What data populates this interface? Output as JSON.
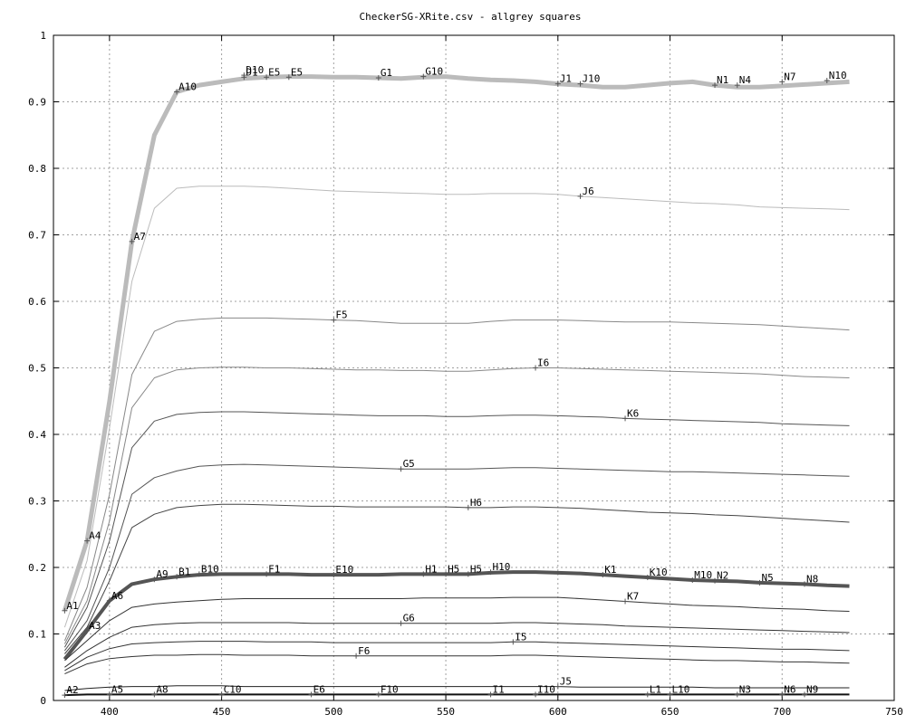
{
  "chart_data": {
    "type": "line",
    "title": "CheckerSG-XRite.csv - allgrey squares",
    "xlim": [
      375,
      750
    ],
    "ylim": [
      0,
      1
    ],
    "xticks": [
      400,
      450,
      500,
      550,
      600,
      650,
      700,
      750
    ],
    "yticks": [
      0,
      0.1,
      0.2,
      0.3,
      0.4,
      0.5,
      0.6,
      0.7,
      0.8,
      0.9,
      1
    ],
    "grid": true,
    "x": [
      380,
      390,
      400,
      410,
      420,
      430,
      440,
      450,
      460,
      470,
      480,
      490,
      500,
      510,
      520,
      530,
      540,
      550,
      560,
      570,
      580,
      590,
      600,
      610,
      620,
      630,
      640,
      650,
      660,
      670,
      680,
      690,
      700,
      710,
      720,
      730
    ],
    "series": [
      {
        "color": "#bbbbbb",
        "width": 5,
        "values": [
          0.135,
          0.24,
          0.45,
          0.69,
          0.85,
          0.915,
          0.925,
          0.93,
          0.935,
          0.937,
          0.938,
          0.938,
          0.937,
          0.937,
          0.936,
          0.935,
          0.937,
          0.938,
          0.935,
          0.933,
          0.932,
          0.93,
          0.927,
          0.925,
          0.922,
          0.922,
          0.925,
          0.928,
          0.93,
          0.925,
          0.922,
          0.922,
          0.924,
          0.926,
          0.928,
          0.93
        ]
      },
      {
        "color": "#bbbbbb",
        "width": 1,
        "values": [
          0.11,
          0.21,
          0.41,
          0.63,
          0.74,
          0.77,
          0.773,
          0.773,
          0.773,
          0.772,
          0.77,
          0.768,
          0.766,
          0.765,
          0.764,
          0.763,
          0.762,
          0.761,
          0.761,
          0.762,
          0.762,
          0.762,
          0.761,
          0.758,
          0.756,
          0.754,
          0.752,
          0.75,
          0.748,
          0.747,
          0.745,
          0.742,
          0.741,
          0.74,
          0.739,
          0.738
        ]
      },
      {
        "color": "#888888",
        "width": 1,
        "values": [
          0.09,
          0.17,
          0.31,
          0.49,
          0.555,
          0.57,
          0.573,
          0.575,
          0.575,
          0.575,
          0.574,
          0.573,
          0.572,
          0.571,
          0.569,
          0.567,
          0.567,
          0.567,
          0.567,
          0.57,
          0.572,
          0.572,
          0.572,
          0.571,
          0.57,
          0.569,
          0.569,
          0.569,
          0.568,
          0.567,
          0.566,
          0.565,
          0.563,
          0.561,
          0.559,
          0.557
        ]
      },
      {
        "color": "#888888",
        "width": 1,
        "values": [
          0.085,
          0.15,
          0.27,
          0.44,
          0.485,
          0.497,
          0.5,
          0.501,
          0.501,
          0.5,
          0.5,
          0.499,
          0.498,
          0.497,
          0.497,
          0.496,
          0.496,
          0.495,
          0.495,
          0.497,
          0.499,
          0.5,
          0.5,
          0.499,
          0.498,
          0.497,
          0.496,
          0.495,
          0.494,
          0.493,
          0.492,
          0.491,
          0.489,
          0.487,
          0.486,
          0.485
        ]
      },
      {
        "color": "#555555",
        "width": 1,
        "values": [
          0.08,
          0.14,
          0.24,
          0.38,
          0.42,
          0.43,
          0.433,
          0.434,
          0.434,
          0.433,
          0.432,
          0.431,
          0.43,
          0.429,
          0.428,
          0.428,
          0.428,
          0.427,
          0.427,
          0.428,
          0.429,
          0.429,
          0.428,
          0.427,
          0.426,
          0.424,
          0.423,
          0.422,
          0.421,
          0.42,
          0.419,
          0.418,
          0.416,
          0.415,
          0.414,
          0.413
        ]
      },
      {
        "color": "#555555",
        "width": 1,
        "values": [
          0.075,
          0.12,
          0.2,
          0.31,
          0.335,
          0.345,
          0.352,
          0.354,
          0.355,
          0.354,
          0.353,
          0.352,
          0.351,
          0.35,
          0.349,
          0.348,
          0.348,
          0.348,
          0.348,
          0.349,
          0.35,
          0.35,
          0.349,
          0.348,
          0.347,
          0.346,
          0.345,
          0.344,
          0.344,
          0.343,
          0.342,
          0.341,
          0.34,
          0.339,
          0.338,
          0.337
        ]
      },
      {
        "color": "#444444",
        "width": 1,
        "values": [
          0.07,
          0.11,
          0.18,
          0.26,
          0.28,
          0.29,
          0.293,
          0.295,
          0.295,
          0.294,
          0.293,
          0.292,
          0.292,
          0.291,
          0.291,
          0.291,
          0.291,
          0.291,
          0.29,
          0.29,
          0.291,
          0.291,
          0.29,
          0.289,
          0.287,
          0.285,
          0.283,
          0.282,
          0.281,
          0.279,
          0.278,
          0.276,
          0.274,
          0.272,
          0.27,
          0.268
        ]
      },
      {
        "color": "#555555",
        "width": 4,
        "values": [
          0.062,
          0.105,
          0.15,
          0.175,
          0.182,
          0.186,
          0.189,
          0.19,
          0.19,
          0.19,
          0.19,
          0.189,
          0.189,
          0.189,
          0.189,
          0.19,
          0.19,
          0.19,
          0.19,
          0.192,
          0.193,
          0.193,
          0.192,
          0.191,
          0.189,
          0.187,
          0.185,
          0.183,
          0.181,
          0.18,
          0.179,
          0.177,
          0.176,
          0.175,
          0.173,
          0.172
        ]
      },
      {
        "color": "#333333",
        "width": 1,
        "values": [
          0.06,
          0.09,
          0.12,
          0.14,
          0.145,
          0.148,
          0.15,
          0.152,
          0.153,
          0.153,
          0.153,
          0.153,
          0.153,
          0.153,
          0.153,
          0.153,
          0.154,
          0.154,
          0.154,
          0.154,
          0.155,
          0.155,
          0.155,
          0.153,
          0.151,
          0.149,
          0.147,
          0.145,
          0.143,
          0.142,
          0.141,
          0.139,
          0.138,
          0.137,
          0.135,
          0.134
        ]
      },
      {
        "color": "#333333",
        "width": 1,
        "values": [
          0.05,
          0.075,
          0.095,
          0.11,
          0.114,
          0.116,
          0.117,
          0.117,
          0.117,
          0.117,
          0.117,
          0.116,
          0.116,
          0.116,
          0.116,
          0.116,
          0.116,
          0.116,
          0.116,
          0.116,
          0.117,
          0.117,
          0.116,
          0.115,
          0.114,
          0.112,
          0.111,
          0.11,
          0.109,
          0.108,
          0.107,
          0.106,
          0.105,
          0.104,
          0.103,
          0.102
        ]
      },
      {
        "color": "#333333",
        "width": 1,
        "values": [
          0.045,
          0.065,
          0.078,
          0.085,
          0.087,
          0.088,
          0.089,
          0.089,
          0.089,
          0.088,
          0.088,
          0.088,
          0.087,
          0.087,
          0.087,
          0.087,
          0.087,
          0.087,
          0.087,
          0.087,
          0.088,
          0.088,
          0.087,
          0.086,
          0.085,
          0.084,
          0.083,
          0.082,
          0.081,
          0.08,
          0.079,
          0.078,
          0.077,
          0.077,
          0.076,
          0.075
        ]
      },
      {
        "color": "#333333",
        "width": 1,
        "values": [
          0.04,
          0.055,
          0.063,
          0.066,
          0.068,
          0.068,
          0.069,
          0.069,
          0.068,
          0.068,
          0.068,
          0.067,
          0.067,
          0.067,
          0.067,
          0.067,
          0.067,
          0.067,
          0.067,
          0.067,
          0.068,
          0.068,
          0.067,
          0.066,
          0.065,
          0.064,
          0.063,
          0.062,
          0.061,
          0.06,
          0.06,
          0.059,
          0.058,
          0.058,
          0.057,
          0.056
        ]
      },
      {
        "color": "#222222",
        "width": 1,
        "values": [
          0.015,
          0.018,
          0.02,
          0.021,
          0.021,
          0.022,
          0.022,
          0.022,
          0.021,
          0.021,
          0.021,
          0.021,
          0.021,
          0.021,
          0.021,
          0.021,
          0.021,
          0.021,
          0.021,
          0.021,
          0.021,
          0.021,
          0.021,
          0.02,
          0.02,
          0.02,
          0.02,
          0.02,
          0.02,
          0.019,
          0.019,
          0.019,
          0.019,
          0.019,
          0.019,
          0.019
        ]
      },
      {
        "color": "#111111",
        "width": 2,
        "values": [
          0.008,
          0.009,
          0.009,
          0.009,
          0.009,
          0.009,
          0.009,
          0.009,
          0.009,
          0.009,
          0.009,
          0.009,
          0.009,
          0.009,
          0.009,
          0.009,
          0.009,
          0.009,
          0.009,
          0.009,
          0.009,
          0.009,
          0.009,
          0.009,
          0.009,
          0.009,
          0.009,
          0.009,
          0.009,
          0.009,
          0.009,
          0.009,
          0.009,
          0.009,
          0.009,
          0.009
        ]
      }
    ],
    "annotations": [
      {
        "text": "A1",
        "x": 380,
        "y": 0.135
      },
      {
        "text": "A4",
        "x": 390,
        "y": 0.24
      },
      {
        "text": "A7",
        "x": 410,
        "y": 0.69
      },
      {
        "text": "A10",
        "x": 430,
        "y": 0.915
      },
      {
        "text": "D10",
        "x": 460,
        "y": 0.94
      },
      {
        "text": "D1",
        "x": 460,
        "y": 0.937
      },
      {
        "text": "E5",
        "x": 470,
        "y": 0.937
      },
      {
        "text": "E5",
        "x": 480,
        "y": 0.937
      },
      {
        "text": "G1",
        "x": 520,
        "y": 0.936
      },
      {
        "text": "G10",
        "x": 540,
        "y": 0.938
      },
      {
        "text": "J1",
        "x": 600,
        "y": 0.927
      },
      {
        "text": "J10",
        "x": 610,
        "y": 0.927
      },
      {
        "text": "N1",
        "x": 670,
        "y": 0.925
      },
      {
        "text": "N4",
        "x": 680,
        "y": 0.925
      },
      {
        "text": "N7",
        "x": 700,
        "y": 0.93
      },
      {
        "text": "N10",
        "x": 720,
        "y": 0.932
      },
      {
        "text": "J6",
        "x": 610,
        "y": 0.758
      },
      {
        "text": "F5",
        "x": 500,
        "y": 0.572
      },
      {
        "text": "I6",
        "x": 590,
        "y": 0.5
      },
      {
        "text": "K6",
        "x": 630,
        "y": 0.424
      },
      {
        "text": "G5",
        "x": 530,
        "y": 0.348
      },
      {
        "text": "H6",
        "x": 560,
        "y": 0.29
      },
      {
        "text": "A9",
        "x": 420,
        "y": 0.182
      },
      {
        "text": "B1",
        "x": 430,
        "y": 0.186
      },
      {
        "text": "B10",
        "x": 440,
        "y": 0.19
      },
      {
        "text": "F1",
        "x": 470,
        "y": 0.19
      },
      {
        "text": "E10",
        "x": 500,
        "y": 0.189
      },
      {
        "text": "H1",
        "x": 540,
        "y": 0.19
      },
      {
        "text": "H5",
        "x": 550,
        "y": 0.19
      },
      {
        "text": "H5",
        "x": 560,
        "y": 0.19
      },
      {
        "text": "H10",
        "x": 570,
        "y": 0.193
      },
      {
        "text": "K1",
        "x": 620,
        "y": 0.189
      },
      {
        "text": "K10",
        "x": 640,
        "y": 0.185
      },
      {
        "text": "M10",
        "x": 660,
        "y": 0.181
      },
      {
        "text": "N2",
        "x": 670,
        "y": 0.18
      },
      {
        "text": "N5",
        "x": 690,
        "y": 0.177
      },
      {
        "text": "N8",
        "x": 710,
        "y": 0.175
      },
      {
        "text": "A6",
        "x": 400,
        "y": 0.15
      },
      {
        "text": "K7",
        "x": 630,
        "y": 0.149
      },
      {
        "text": "A3",
        "x": 390,
        "y": 0.105
      },
      {
        "text": "G6",
        "x": 530,
        "y": 0.116
      },
      {
        "text": "I5",
        "x": 580,
        "y": 0.088
      },
      {
        "text": "F6",
        "x": 510,
        "y": 0.067
      },
      {
        "text": "J5",
        "x": 600,
        "y": 0.021
      },
      {
        "text": "A2",
        "x": 380,
        "y": 0.008
      },
      {
        "text": "A5",
        "x": 400,
        "y": 0.009
      },
      {
        "text": "A8",
        "x": 420,
        "y": 0.009
      },
      {
        "text": "C10",
        "x": 450,
        "y": 0.009
      },
      {
        "text": "E6",
        "x": 490,
        "y": 0.009
      },
      {
        "text": "F10",
        "x": 520,
        "y": 0.009
      },
      {
        "text": "I1",
        "x": 570,
        "y": 0.009
      },
      {
        "text": "I10",
        "x": 590,
        "y": 0.009
      },
      {
        "text": "L1",
        "x": 640,
        "y": 0.009
      },
      {
        "text": "L10",
        "x": 650,
        "y": 0.009
      },
      {
        "text": "N3",
        "x": 680,
        "y": 0.009
      },
      {
        "text": "N6",
        "x": 700,
        "y": 0.009
      },
      {
        "text": "N9",
        "x": 710,
        "y": 0.009
      }
    ]
  }
}
